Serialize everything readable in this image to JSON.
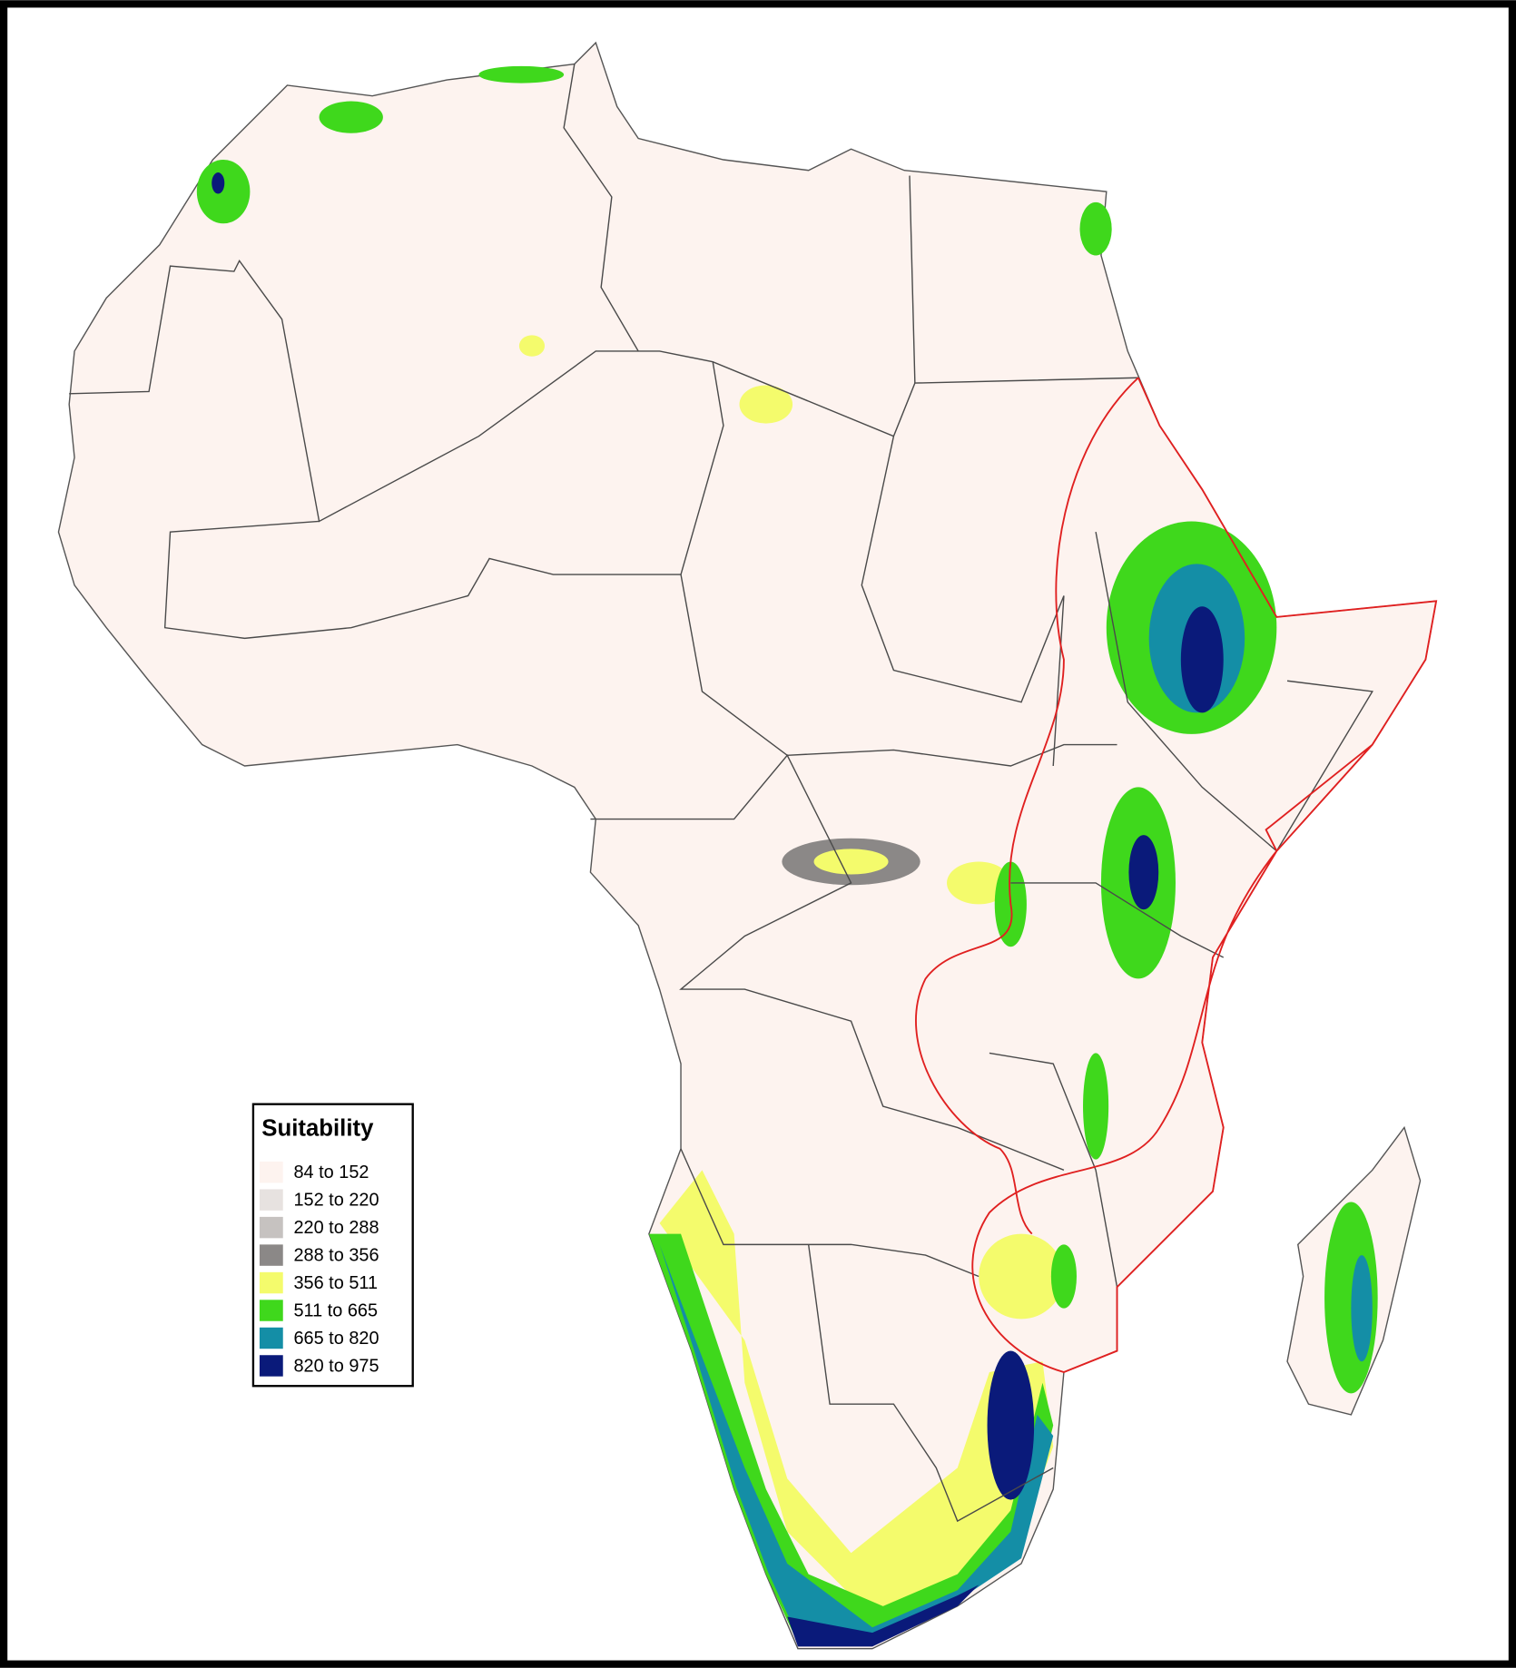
{
  "legend": {
    "title": "Suitability",
    "items": [
      {
        "label": "84 to 152",
        "color": "#fdf3ef"
      },
      {
        "label": "152 to 220",
        "color": "#e7e2e0"
      },
      {
        "label": "220 to 288",
        "color": "#c6c2c0"
      },
      {
        "label": "288 to 356",
        "color": "#8b8887"
      },
      {
        "label": "356 to 511",
        "color": "#f4fb6c"
      },
      {
        "label": "511 to 665",
        "color": "#3fd81c"
      },
      {
        "label": "665 to 820",
        "color": "#148ea6"
      },
      {
        "label": "820 to 975",
        "color": "#0a1a7a"
      }
    ]
  }
}
